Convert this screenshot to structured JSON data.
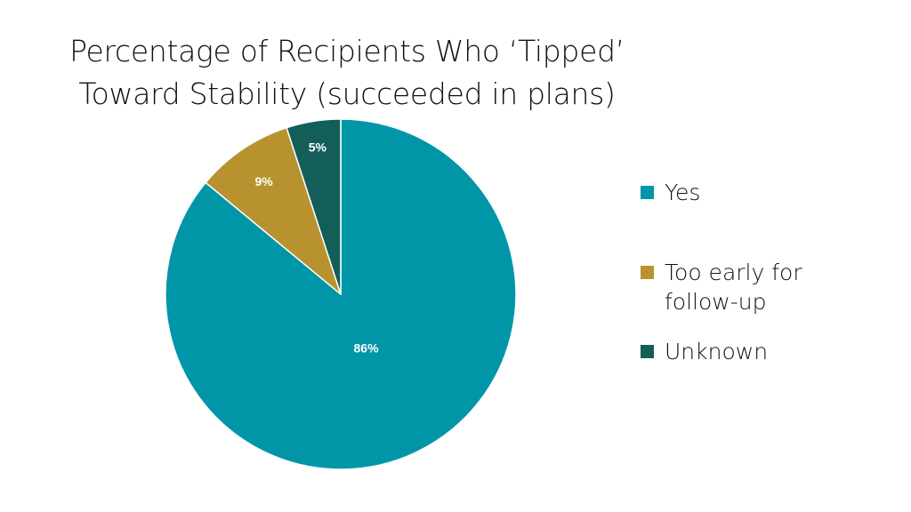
{
  "chart_data": {
    "type": "pie",
    "title": "Percentage of Recipients Who ‘Tipped’ Toward Stability (succeeded in plans)",
    "title_lines": [
      "Percentage of Recipients Who ‘Tipped’",
      "Toward Stability (succeeded in plans)"
    ],
    "slices": [
      {
        "name": "Yes",
        "value": 86,
        "label": "86%",
        "color": "#0096a8"
      },
      {
        "name": "Too early for follow-up",
        "value": 9,
        "label": "9%",
        "color": "#b8922e"
      },
      {
        "name": "Unknown",
        "value": 5,
        "label": "5%",
        "color": "#135e58"
      }
    ],
    "legend_position": "right"
  }
}
